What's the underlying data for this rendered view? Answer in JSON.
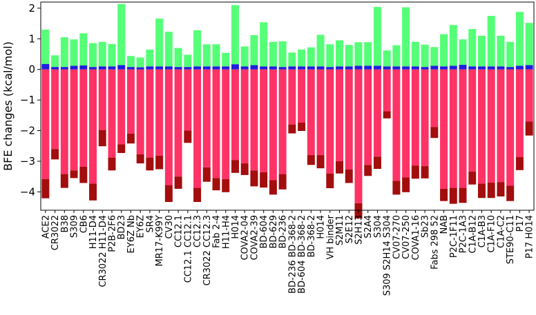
{
  "chart_data": {
    "type": "bar",
    "stacked": true,
    "title": "",
    "xlabel": "",
    "ylabel": "BFE changes (kcal/mol)",
    "ylim": [
      -4.6,
      2.2
    ],
    "yticks": [
      -4,
      -3,
      -2,
      -1,
      0,
      1,
      2
    ],
    "grid": false,
    "legend": "none",
    "categories": [
      "ACE2",
      "CR3022",
      "B38",
      "S309",
      "CB6",
      "H11-D4",
      "CR3022 H11-D4",
      "P2B-2F6",
      "BD23",
      "EY6Z Nb",
      "EY6Z",
      "SR4",
      "MR17-K99Y",
      "CV30",
      "CC12.1",
      "CC12.1 CC12.1",
      "CC12.3",
      "CR3022 CC12.3",
      "Fab 2-4",
      "H11-H4",
      "H014",
      "COVA2-04",
      "COVA2-39",
      "BD-604",
      "BD-629",
      "BD-236",
      "BD-236 BD-368-2",
      "BD-604 BD-368-2",
      "BD-368-2",
      "H014 ",
      "VH binder",
      "S2M11",
      "S2E12",
      "S2H13",
      "S2A4",
      "S304",
      "S309 S2H14 S304",
      "CV07-270",
      "CV07-250",
      "COVA1-16",
      "Sb23",
      "Fabs 298 52",
      "NAB",
      "P2C-1F11",
      "P2C-1A3",
      "C1A-B12",
      "C1A-B3",
      "C1A-F10",
      "C1A-C2",
      "STE90-C11",
      "P17",
      "P17 H014"
    ],
    "series": [
      {
        "color": "#ff3366",
        "values": [
          -3.58,
          -2.6,
          -3.42,
          -3.3,
          -3.18,
          -3.73,
          -1.98,
          -2.88,
          -2.45,
          -2.1,
          -2.77,
          -2.88,
          -2.82,
          -3.78,
          -3.5,
          -2.0,
          -3.87,
          -3.2,
          -3.55,
          -3.58,
          -2.96,
          -3.07,
          -3.3,
          -3.36,
          -3.62,
          -3.42,
          -1.8,
          -1.74,
          -2.8,
          -2.8,
          -3.4,
          -3.0,
          -3.27,
          -4.37,
          -3.12,
          -2.85,
          -1.37,
          -3.64,
          -3.53,
          -3.14,
          -3.16,
          -1.88,
          -3.9,
          -3.87,
          -3.87,
          -3.34,
          -3.73,
          -3.7,
          -3.68,
          -3.8,
          -2.86,
          -1.7
        ]
      },
      {
        "color": "#a30d0d",
        "values": [
          -0.63,
          -0.34,
          -0.45,
          -0.25,
          -0.53,
          -0.55,
          -0.53,
          -0.42,
          -0.28,
          -0.32,
          -0.3,
          -0.42,
          -0.44,
          -0.55,
          -0.4,
          -0.4,
          -0.46,
          -0.47,
          -0.4,
          -0.43,
          -0.42,
          -0.38,
          -0.52,
          -0.5,
          -0.47,
          -0.5,
          -0.29,
          -0.27,
          -0.32,
          -0.43,
          -0.48,
          -0.4,
          -0.44,
          -0.5,
          -0.36,
          -0.4,
          -0.23,
          -0.45,
          -0.48,
          -0.43,
          -0.4,
          -0.36,
          -0.4,
          -0.52,
          -0.49,
          -0.42,
          -0.47,
          -0.5,
          -0.47,
          -0.5,
          -0.43,
          -0.46
        ]
      },
      {
        "color": "#1f1fdd",
        "values": [
          0.18,
          0.08,
          0.08,
          0.12,
          0.13,
          0.08,
          0.1,
          0.1,
          0.14,
          0.08,
          0.07,
          0.1,
          0.1,
          0.1,
          0.08,
          0.08,
          0.1,
          0.1,
          0.1,
          0.1,
          0.17,
          0.1,
          0.14,
          0.1,
          0.1,
          0.08,
          0.1,
          0.1,
          0.1,
          0.1,
          0.08,
          0.1,
          0.1,
          0.12,
          0.12,
          0.12,
          0.1,
          0.1,
          0.1,
          0.1,
          0.08,
          0.12,
          0.1,
          0.12,
          0.15,
          0.1,
          0.1,
          0.1,
          0.1,
          0.08,
          0.12,
          0.14
        ]
      },
      {
        "color": "#55ff77",
        "values": [
          1.12,
          0.38,
          0.97,
          0.86,
          1.05,
          0.78,
          0.8,
          0.73,
          2.0,
          0.36,
          0.32,
          0.55,
          1.56,
          1.13,
          0.62,
          0.4,
          1.18,
          0.72,
          0.72,
          0.44,
          1.93,
          0.65,
          0.98,
          1.44,
          0.8,
          0.84,
          0.45,
          0.55,
          0.62,
          1.03,
          0.74,
          0.85,
          0.7,
          0.77,
          0.77,
          1.92,
          0.52,
          0.69,
          1.93,
          0.8,
          0.73,
          0.61,
          1.05,
          1.33,
          0.83,
          1.22,
          1.0,
          1.65,
          1.0,
          0.82,
          1.76,
          1.38
        ]
      }
    ]
  }
}
